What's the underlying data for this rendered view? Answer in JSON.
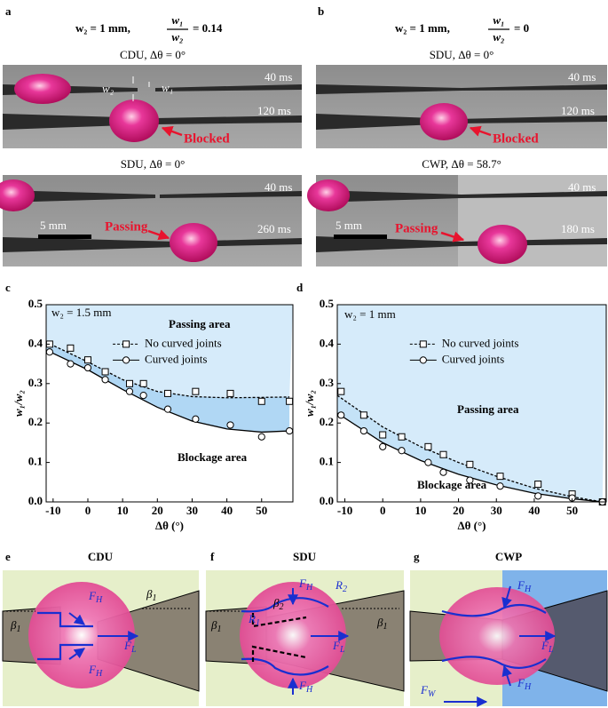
{
  "panels": {
    "a": {
      "letter": "a",
      "header": [
        "w₂ = 1 mm,",
        "w₁",
        "w₂",
        "= 0.14"
      ],
      "photo1": {
        "title": "CDU, Δθ = 0°",
        "t1": "40 ms",
        "t2": "120 ms",
        "w2": "w₂",
        "w1": "w₁",
        "note": "Blocked"
      },
      "photo2": {
        "title": "SDU, Δθ = 0°",
        "t1": "40 ms",
        "t2": "260 ms",
        "scale": "5 mm",
        "note": "Passing"
      }
    },
    "b": {
      "letter": "b",
      "header": [
        "w₂ = 1 mm,",
        "w₁",
        "w₂",
        "= 0"
      ],
      "photo1": {
        "title": "SDU, Δθ = 0°",
        "t1": "40 ms",
        "t2": "120 ms",
        "note": "Blocked"
      },
      "photo2": {
        "title": "CWP, Δθ = 58.7°",
        "t1": "40 ms",
        "t2": "180 ms",
        "scale": "5 mm",
        "note": "Passing"
      }
    },
    "e": {
      "letter": "e",
      "title": "CDU",
      "labels": [
        [
          "F",
          "H"
        ],
        [
          "F",
          "L"
        ],
        [
          "F",
          "H"
        ],
        [
          "β",
          "1"
        ],
        [
          "β",
          "1"
        ]
      ]
    },
    "f": {
      "letter": "f",
      "title": "SDU",
      "labels": [
        [
          "F",
          "H"
        ],
        [
          "R",
          "2"
        ],
        [
          "R",
          "1"
        ],
        [
          "β",
          "2"
        ],
        [
          "F",
          "L"
        ],
        [
          "F",
          "H"
        ],
        [
          "β",
          "1"
        ],
        [
          "β",
          "1"
        ]
      ]
    },
    "g": {
      "letter": "g",
      "title": "CWP",
      "labels": [
        [
          "F",
          "H"
        ],
        [
          "F",
          "L"
        ],
        [
          "F",
          "H"
        ],
        [
          "F",
          "W"
        ]
      ]
    }
  },
  "chart_data": [
    {
      "type": "scatter",
      "letter": "c",
      "annotations": [
        "w₂ = 1.5 mm",
        "Passing area",
        "Blockage area"
      ],
      "x_label": "Δθ (°)",
      "y_label": "w₁/w₂",
      "xlim": [
        -12,
        59
      ],
      "xticks": [
        -10,
        0,
        10,
        20,
        30,
        40,
        50
      ],
      "ylim": [
        0,
        0.5
      ],
      "yticks": [
        {
          "value": 0,
          "label": "0.0"
        },
        0.1,
        0.2,
        0.3,
        0.4,
        0.5
      ],
      "x": [
        -11,
        -5,
        0,
        5,
        12,
        16,
        23,
        31,
        41,
        50,
        58
      ],
      "fit_x": [
        -12,
        0,
        10,
        20,
        30,
        40,
        50,
        58
      ],
      "series": [
        {
          "name": "No curved joints",
          "marker": "square",
          "line": "dashed",
          "color": "#000000",
          "fill": "#d6ebfa",
          "values": [
            0.4,
            0.39,
            0.36,
            0.33,
            0.3,
            0.3,
            0.275,
            0.28,
            0.275,
            0.255,
            0.255
          ],
          "fit": [
            0.405,
            0.355,
            0.31,
            0.28,
            0.267,
            0.264,
            0.265,
            0.266
          ]
        },
        {
          "name": "Curved joints",
          "marker": "circle",
          "line": "solid",
          "color": "#000000",
          "fill": "#b0d7f4",
          "values": [
            0.38,
            0.35,
            0.34,
            0.31,
            0.28,
            0.27,
            0.235,
            0.21,
            0.195,
            0.165,
            0.18
          ],
          "fit": [
            0.385,
            0.335,
            0.285,
            0.24,
            0.205,
            0.185,
            0.177,
            0.18
          ]
        }
      ]
    },
    {
      "type": "scatter",
      "letter": "d",
      "annotations": [
        "w₂ = 1 mm",
        "Passing area",
        "Blockage area"
      ],
      "x_label": "Δθ (°)",
      "y_label": "w₁/w₂",
      "xlim": [
        -12,
        59
      ],
      "xticks": [
        -10,
        0,
        10,
        20,
        30,
        40,
        50
      ],
      "ylim": [
        0,
        0.5
      ],
      "yticks": [
        {
          "value": 0,
          "label": "0.0"
        },
        0.1,
        0.2,
        0.3,
        0.4,
        0.5
      ],
      "x": [
        -11,
        -5,
        0,
        5,
        12,
        16,
        23,
        31,
        41,
        50,
        58
      ],
      "fit_x": [
        -12,
        0,
        10,
        20,
        30,
        40,
        50,
        58
      ],
      "series": [
        {
          "name": "No curved joints",
          "marker": "square",
          "line": "dashed",
          "color": "#000000",
          "fill": "#d6ebfa",
          "values": [
            0.28,
            0.22,
            0.17,
            0.165,
            0.14,
            0.12,
            0.095,
            0.065,
            0.045,
            0.02,
            0.0
          ],
          "fit": [
            0.27,
            0.19,
            0.14,
            0.1,
            0.065,
            0.035,
            0.013,
            0.0
          ]
        },
        {
          "name": "Curved joints",
          "marker": "circle",
          "line": "solid",
          "color": "#000000",
          "fill": "#c4e2f7",
          "values": [
            0.22,
            0.18,
            0.14,
            0.13,
            0.1,
            0.075,
            0.055,
            0.04,
            0.015,
            0.01,
            0.0
          ],
          "fit": [
            0.225,
            0.15,
            0.105,
            0.07,
            0.043,
            0.022,
            0.008,
            0.0
          ]
        }
      ]
    }
  ]
}
